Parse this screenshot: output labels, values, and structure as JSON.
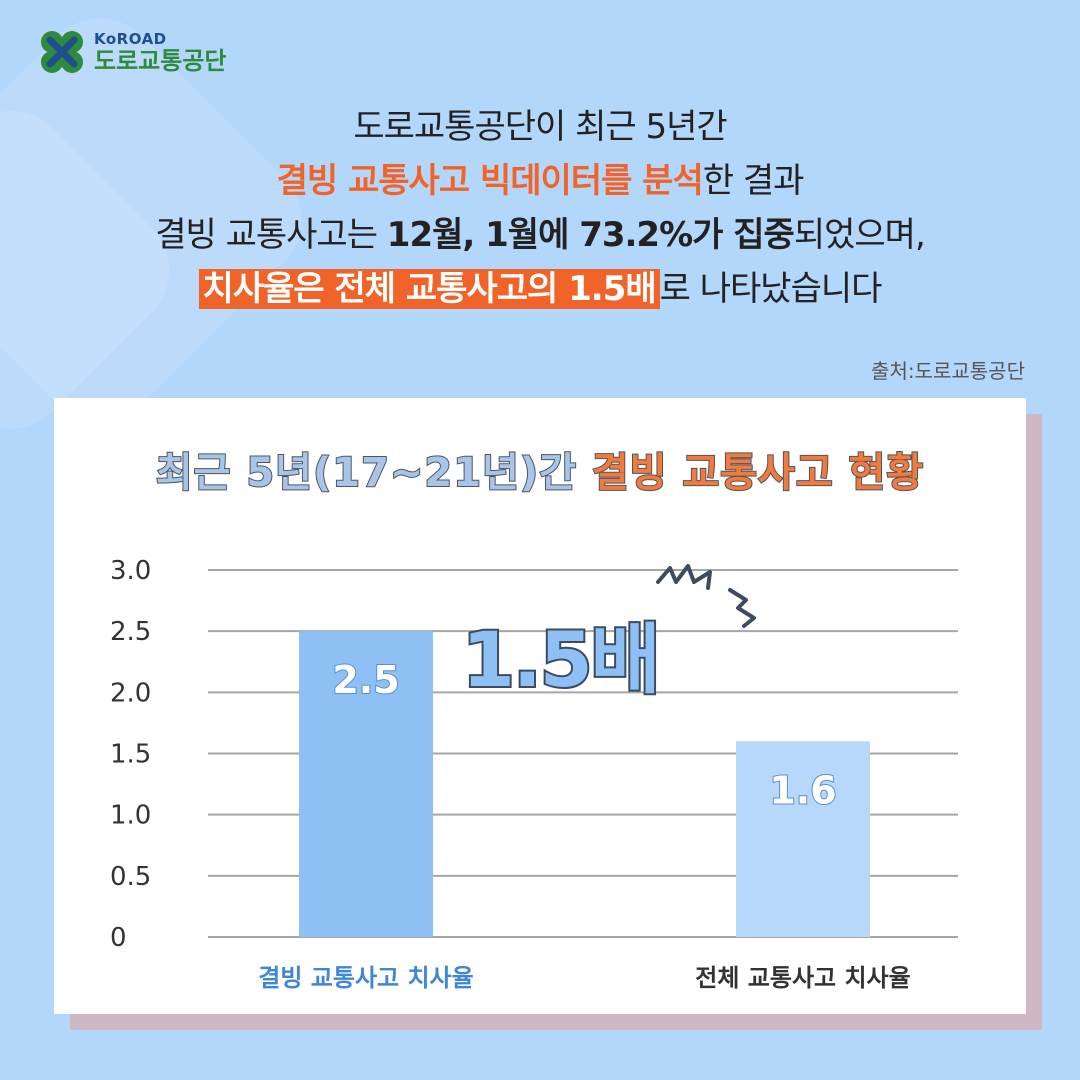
{
  "logo": {
    "en": "KoROAD",
    "ko": "도로교통공단"
  },
  "headline": {
    "line1": "도로교통공단이 최근 5년간",
    "line2_highlight": "결빙 교통사고 빅데이터를 분석",
    "line2_rest": "한 결과",
    "line3_a": "결빙 교통사고는 ",
    "line3_bold": "12월, 1월에 73.2%가 집중",
    "line3_rest": "되었으며,",
    "line4_boxed": "치사율은 전체 교통사고의 1.5배",
    "line4_rest": "로 나타났습니다"
  },
  "source": "출처:도로교통공단",
  "callout": "1.5배",
  "colors": {
    "background": "#b3d6fb",
    "accent": "#f0642a",
    "bar_icy": "#8ec0f6",
    "bar_total": "#b8d8fb",
    "label_icy": "#3f86d6",
    "label_total": "#333333"
  },
  "chart_data": {
    "type": "bar",
    "title_a": "최근 5년(17~21년)간",
    "title_b": "결빙 교통사고 현황",
    "categories": [
      "결빙 교통사고 치사율",
      "전체 교통사고 치사율"
    ],
    "values": [
      2.5,
      1.6
    ],
    "value_labels": [
      "2.5",
      "1.6"
    ],
    "y_ticks": [
      "0",
      "0.5",
      "1.0",
      "1.5",
      "2.0",
      "2.5",
      "3.0"
    ],
    "ylim": [
      0,
      3.0
    ],
    "grid": true
  }
}
